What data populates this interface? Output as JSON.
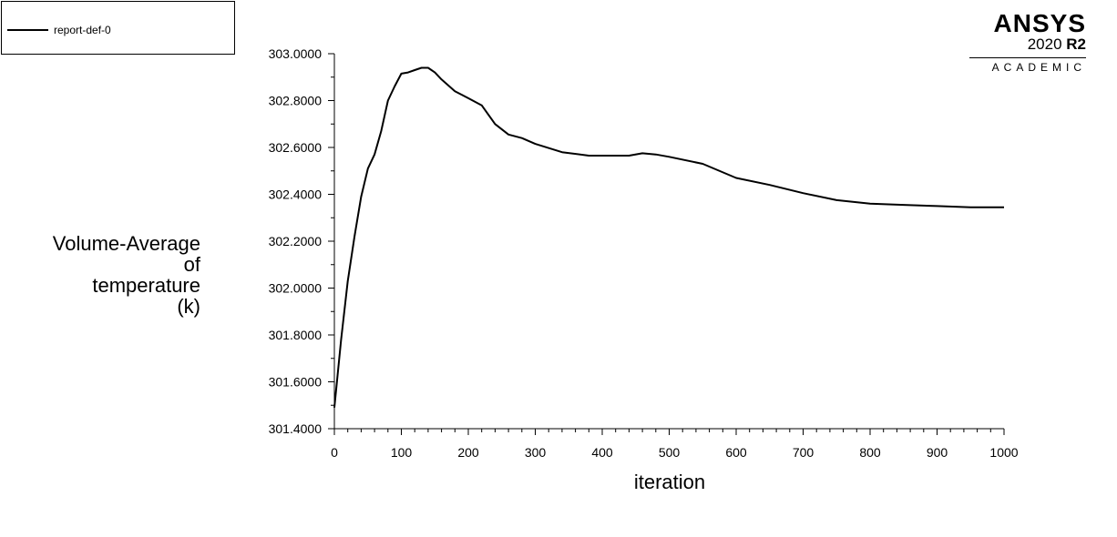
{
  "legend": {
    "entries": [
      {
        "label": "report-def-0"
      }
    ]
  },
  "logo": {
    "brand": "ANSYS",
    "version_year": "2020",
    "version_release": "R2",
    "edition": "ACADEMIC"
  },
  "chart_data": {
    "type": "line",
    "xlabel": "iteration",
    "ylabel_lines": [
      "Volume-Average",
      "of",
      "temperature",
      "(k)"
    ],
    "xlim": [
      0,
      1000
    ],
    "ylim": [
      301.4,
      303.0
    ],
    "x_ticks": [
      0,
      100,
      200,
      300,
      400,
      500,
      600,
      700,
      800,
      900,
      1000
    ],
    "y_ticks": [
      "301.4000",
      "301.6000",
      "301.8000",
      "302.0000",
      "302.2000",
      "302.4000",
      "302.6000",
      "302.8000",
      "303.0000"
    ],
    "grid": false,
    "legend_position": "top-left",
    "series": [
      {
        "name": "report-def-0",
        "x": [
          0,
          10,
          20,
          30,
          40,
          50,
          60,
          70,
          80,
          90,
          100,
          110,
          120,
          130,
          140,
          150,
          160,
          180,
          200,
          220,
          240,
          260,
          280,
          300,
          340,
          380,
          400,
          440,
          460,
          480,
          500,
          550,
          600,
          650,
          700,
          750,
          800,
          850,
          900,
          950,
          1000
        ],
        "y": [
          301.49,
          301.78,
          302.03,
          302.22,
          302.39,
          302.51,
          302.57,
          302.67,
          302.8,
          302.86,
          302.915,
          302.92,
          302.93,
          302.94,
          302.94,
          302.92,
          302.89,
          302.84,
          302.81,
          302.78,
          302.7,
          302.655,
          302.64,
          302.615,
          302.58,
          302.565,
          302.565,
          302.565,
          302.575,
          302.57,
          302.56,
          302.53,
          302.47,
          302.44,
          302.405,
          302.375,
          302.36,
          302.355,
          302.35,
          302.345,
          302.345
        ]
      }
    ]
  }
}
